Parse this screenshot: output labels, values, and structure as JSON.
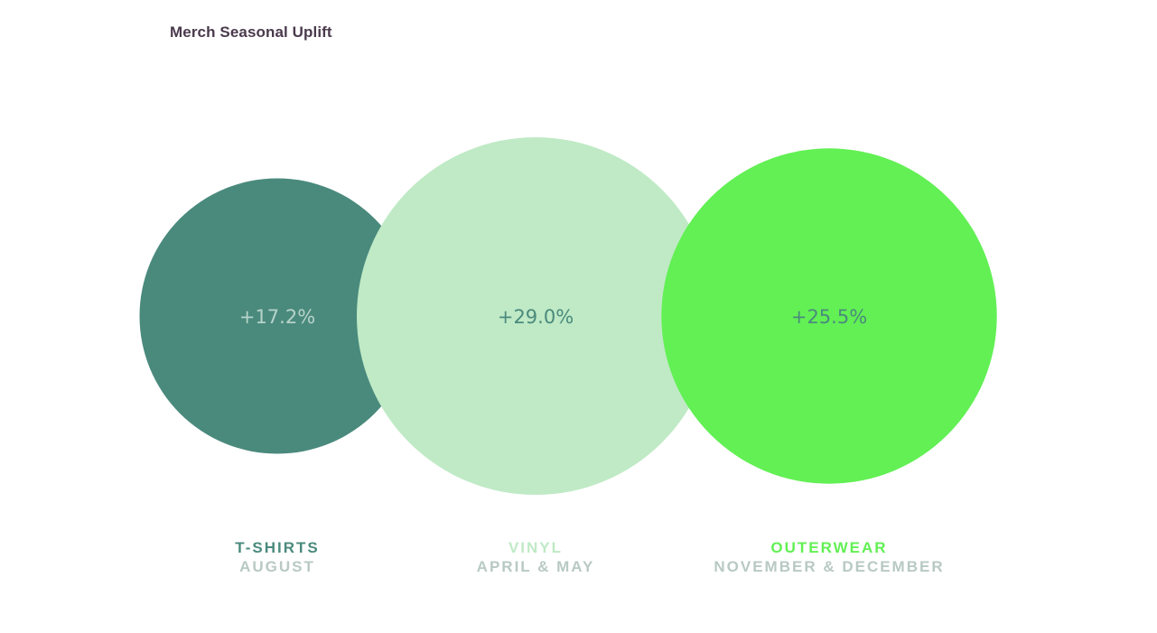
{
  "chart_data": {
    "type": "bubble",
    "title": "Merch Seasonal Uplift",
    "value_format": "percent-signed",
    "series": [
      {
        "category": "T-SHIRTS",
        "period": "AUGUST",
        "value": 17.2,
        "label": "+17.2%",
        "color": "#4a8a7d",
        "value_text_color": "#b7d3c9",
        "category_color": "#4a8a7d"
      },
      {
        "category": "VINYL",
        "period": "APRIL & MAY",
        "value": 29.0,
        "label": "+29.0%",
        "color": "#bfeac5",
        "value_text_color": "#4a8a7d",
        "category_color": "#bfeac5"
      },
      {
        "category": "OUTERWEAR",
        "period": "NOVEMBER & DECEMBER",
        "value": 25.5,
        "label": "+25.5%",
        "color": "#62f054",
        "value_text_color": "#4a8a7d",
        "category_color": "#62f054"
      }
    ],
    "period_color": "#b8c9c3"
  }
}
